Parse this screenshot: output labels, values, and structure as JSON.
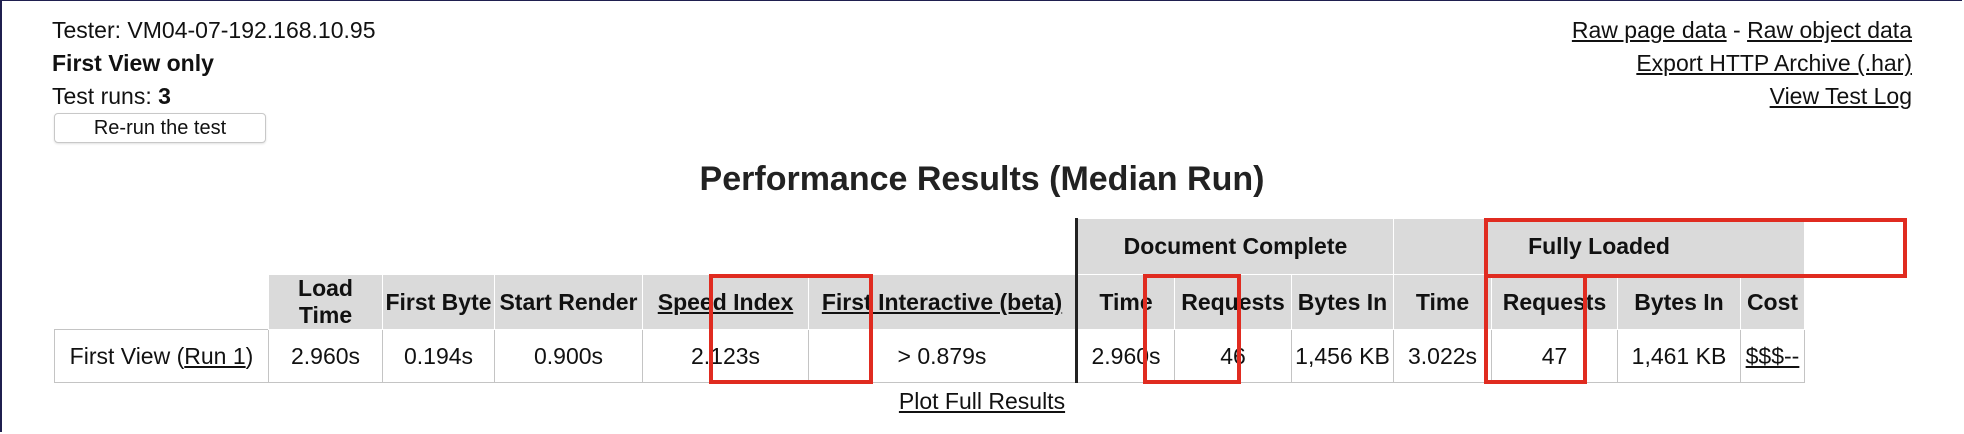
{
  "tester": {
    "label": "Tester: VM04-07-192.168.10.95"
  },
  "view_mode": "First View only",
  "runs": {
    "label": "Test runs: ",
    "value": "3"
  },
  "rerun_button": "Re-run the test",
  "links": {
    "raw_page": "Raw page data",
    "separator": " - ",
    "raw_object": "Raw object data",
    "export_har": "Export HTTP Archive (.har)",
    "test_log": "View Test Log",
    "plot_full": "Plot Full Results"
  },
  "title": "Performance Results (Median Run)",
  "groups": {
    "document_complete": "Document Complete",
    "fully_loaded": "Fully Loaded"
  },
  "columns": {
    "load_time": "Load Time",
    "first_byte": "First Byte",
    "start_render": "Start Render",
    "speed_index": "Speed Index",
    "first_interactive": "First Interactive (beta)",
    "dc_time": "Time",
    "dc_requests": "Requests",
    "dc_bytes": "Bytes In",
    "fl_time": "Time",
    "fl_requests": "Requests",
    "fl_bytes": "Bytes In",
    "cost": "Cost"
  },
  "row": {
    "label_prefix": "First View (",
    "run_link": "Run 1",
    "label_suffix": ")",
    "load_time": "2.960s",
    "first_byte": "0.194s",
    "start_render": "0.900s",
    "speed_index": "2.123s",
    "first_interactive": "> 0.879s",
    "dc_time": "2.960s",
    "dc_requests": "46",
    "dc_bytes": "1,456 KB",
    "fl_time": "3.022s",
    "fl_requests": "47",
    "fl_bytes": "1,461 KB",
    "cost": "$$$--"
  },
  "colors": {
    "highlight": "#e02b20",
    "header_bg": "#dadada",
    "separator": "#222222"
  }
}
